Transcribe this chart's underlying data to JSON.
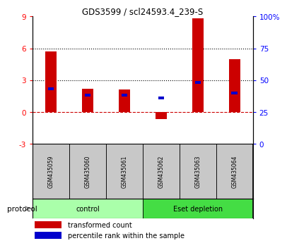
{
  "title": "GDS3599 / scl24593.4_239-S",
  "samples": [
    "GSM435059",
    "GSM435060",
    "GSM435061",
    "GSM435062",
    "GSM435063",
    "GSM435064"
  ],
  "transformed_count": [
    5.7,
    2.2,
    2.1,
    -0.7,
    8.8,
    5.0
  ],
  "percentile_rank_left": [
    2.2,
    1.6,
    1.6,
    1.3,
    2.8,
    1.8
  ],
  "ylim_left": [
    -3,
    9
  ],
  "ylim_right": [
    0,
    100
  ],
  "yticks_left": [
    -3,
    0,
    3,
    6,
    9
  ],
  "yticks_right": [
    0,
    25,
    50,
    75,
    100
  ],
  "yticklabels_right": [
    "0",
    "25",
    "50",
    "75",
    "100%"
  ],
  "hlines": [
    0,
    3,
    6
  ],
  "hline_styles": [
    "dashed",
    "dotted",
    "dotted"
  ],
  "hline_colors": [
    "#CC0000",
    "#000000",
    "#000000"
  ],
  "bar_color_red": "#CC0000",
  "bar_color_blue": "#0000CC",
  "bar_width": 0.3,
  "blue_bar_height": 0.28,
  "background_label": "#c8c8c8",
  "background_group_control": "#aaffaa",
  "background_group_eset": "#44dd44",
  "legend_red_label": "transformed count",
  "legend_blue_label": "percentile rank within the sample",
  "protocol_label": "protocol",
  "group_label_control": "control",
  "group_label_eset": "Eset depletion",
  "group_indices_control": [
    0,
    1,
    2
  ],
  "group_indices_eset": [
    3,
    4,
    5
  ]
}
